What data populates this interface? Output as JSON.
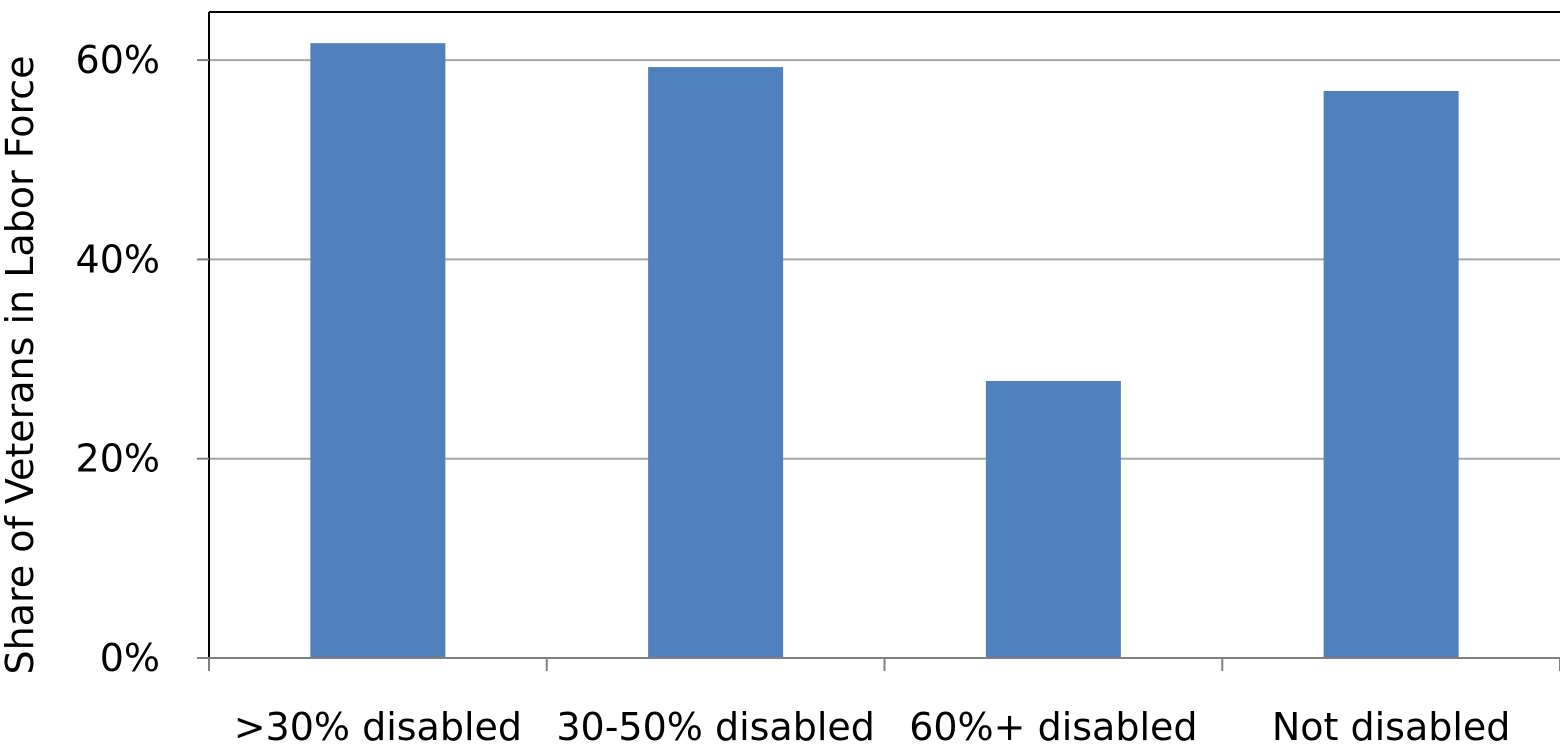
{
  "chart_data": {
    "type": "bar",
    "categories": [
      ">30% disabled",
      "30-50% disabled",
      "60%+ disabled",
      "Not disabled"
    ],
    "values": [
      0.617,
      0.593,
      0.278,
      0.569
    ],
    "title": "",
    "xlabel": "",
    "ylabel": "Share of Veterans in Labor Force",
    "ylim": [
      0,
      0.65
    ],
    "yticks": [
      0,
      0.2,
      0.4,
      0.6
    ],
    "ytick_labels": [
      "0%",
      "20%",
      "40%",
      "60%"
    ],
    "grid": true,
    "legend": "none",
    "colors": {
      "bar": "#4f81bd",
      "grid": "#a6a6a6",
      "axis": "#808080",
      "frame": "#000000"
    }
  }
}
